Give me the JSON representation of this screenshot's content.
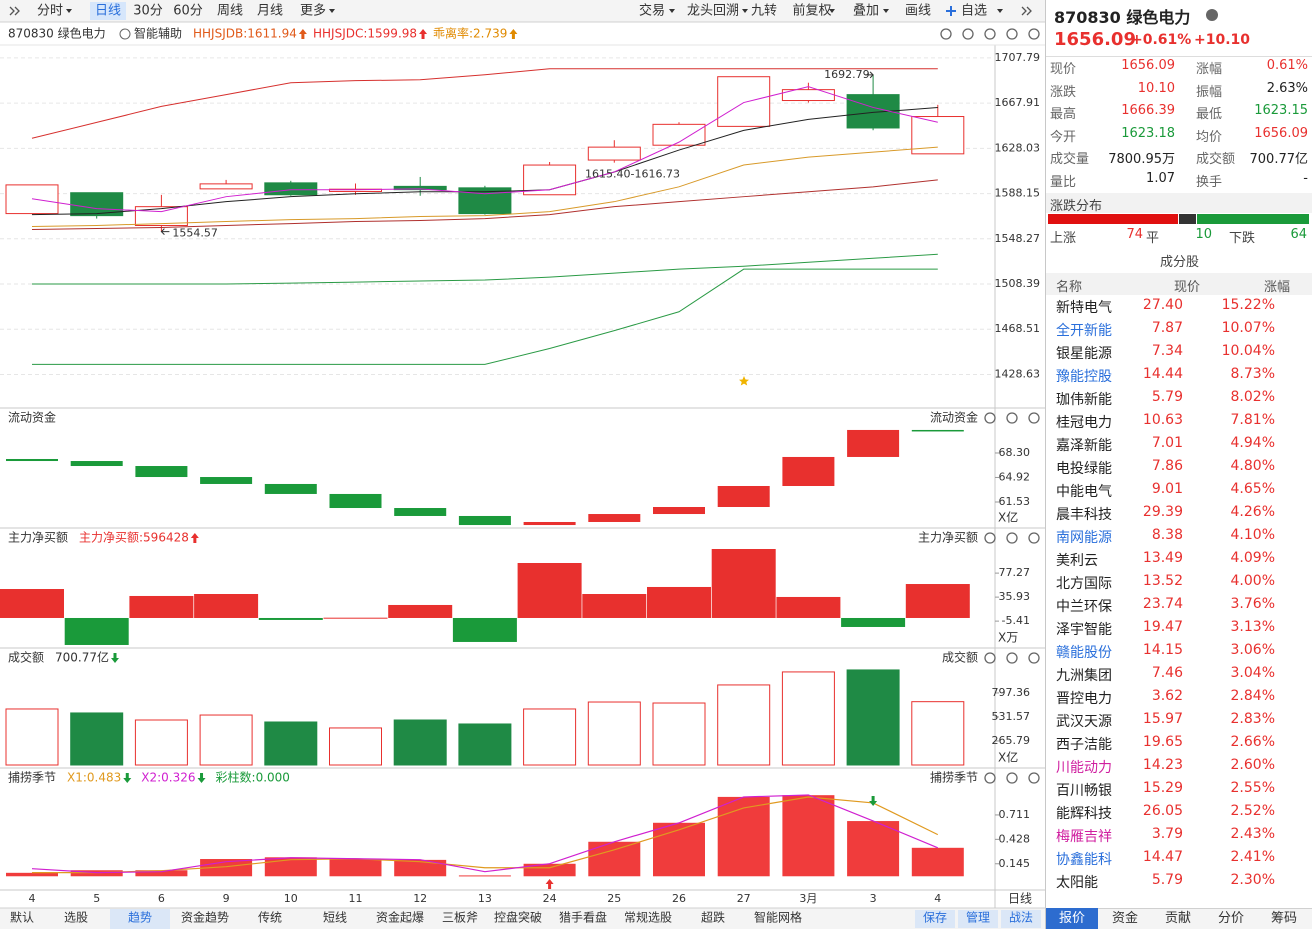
{
  "toolbar": {
    "left": [
      "分时",
      "日线",
      "30分",
      "60分",
      "周线",
      "月线",
      "更多"
    ],
    "active_index": 1,
    "right": [
      "交易",
      "龙头回溯",
      "九转",
      "前复权",
      "叠加",
      "画线",
      "自选"
    ]
  },
  "info_bar": {
    "code": "870830 绿色电力",
    "assist": "智能辅助",
    "items": [
      {
        "text": "HHJSJDB:1611.94",
        "color": "#e05a1a",
        "arrow": "up"
      },
      {
        "text": "HHJSJDC:1599.98",
        "color": "#e8302e",
        "arrow": "up"
      },
      {
        "text": "乖离率:2.739",
        "color": "#e08a00",
        "arrow": "up"
      }
    ]
  },
  "kline": {
    "categories": [
      "4",
      "5",
      "6",
      "9",
      "10",
      "11",
      "12",
      "13",
      "24",
      "25",
      "26",
      "27",
      "3月",
      "3",
      "4"
    ],
    "open": [
      1570.5,
      1588.9,
      1560.0,
      1592.3,
      1597.6,
      1590.0,
      1594.5,
      1593.2,
      1587.1,
      1617.7,
      1630.8,
      1647.4,
      1670.2,
      1675.4,
      1623.18
    ],
    "high": [
      1596.0,
      1589.0,
      1587.0,
      1600.2,
      1599.4,
      1597.0,
      1602.8,
      1595.0,
      1616.0,
      1635.2,
      1651.0,
      1691.2,
      1685.9,
      1692.79,
      1666.39
    ],
    "low": [
      1570.0,
      1566.1,
      1554.57,
      1592.3,
      1586.2,
      1587.0,
      1586.2,
      1569.6,
      1587.1,
      1615.4,
      1630.0,
      1647.4,
      1668.4,
      1644.0,
      1623.15
    ],
    "close": [
      1595.8,
      1568.7,
      1576.6,
      1596.7,
      1587.1,
      1592.0,
      1591.6,
      1570.5,
      1613.3,
      1629.1,
      1649.2,
      1691.2,
      1679.8,
      1645.99,
      1656.09
    ],
    "up_color": "#e8302e",
    "down_color": "#1f8a45",
    "ylim": [
      1399.06,
      1719.16
    ],
    "yticks": [
      1707.79,
      1667.91,
      1628.03,
      1588.15,
      1548.27,
      1508.39,
      1468.51,
      1428.63
    ],
    "lines": [
      {
        "color": "#d6302e",
        "values": [
          1636.9,
          1650.9,
          1665.0,
          1675.4,
          1685.9,
          1687.7,
          1688.5,
          1692.9,
          1698.2,
          1698.2,
          1698.2,
          1698.2,
          1698.2,
          1698.2,
          1698.2
        ]
      },
      {
        "color": "#2a9a45",
        "values": [
          1508.4,
          1508.4,
          1508.4,
          1508.4,
          1509.2,
          1510.1,
          1511.0,
          1511.9,
          1514.5,
          1518.0,
          1521.5,
          1524.1,
          1527.6,
          1531.1,
          1534.6
        ]
      },
      {
        "color": "#2a9a45",
        "values": [
          1437.5,
          1437.5,
          1437.5,
          1437.5,
          1437.5,
          1437.5,
          1437.5,
          1437.5,
          1451.5,
          1467.3,
          1483.9,
          1521.5,
          1521.5,
          1521.5,
          1521.5
        ]
      },
      {
        "color": "#b0302e",
        "values": [
          1556.5,
          1557.4,
          1558.2,
          1560.0,
          1561.7,
          1563.5,
          1564.4,
          1566.1,
          1569.6,
          1576.6,
          1581.0,
          1585.4,
          1589.7,
          1594.1,
          1600.2
        ]
      },
      {
        "color": "#d89a2a",
        "values": [
          1559.1,
          1560.0,
          1561.7,
          1563.5,
          1565.2,
          1566.1,
          1567.9,
          1568.7,
          1572.2,
          1581.0,
          1594.1,
          1613.3,
          1620.3,
          1624.7,
          1629.1
        ]
      },
      {
        "color": "#222222",
        "values": [
          1569.6,
          1570.5,
          1574.9,
          1581.0,
          1585.4,
          1588.0,
          1589.7,
          1589.7,
          1591.5,
          1607.2,
          1626.5,
          1643.9,
          1653.6,
          1659.7,
          1664.1
        ]
      },
      {
        "color": "#d020d0",
        "values": [
          1583.6,
          1574.9,
          1572.2,
          1585.4,
          1591.5,
          1591.5,
          1592.3,
          1588.0,
          1591.5,
          1607.2,
          1633.5,
          1668.4,
          1682.4,
          1664.1,
          1651.0
        ]
      }
    ],
    "gap_label": "1615.40-1616.73"
  },
  "flow": {
    "title": "流动资金",
    "unit": "X亿",
    "ylim": [
      57.94,
      71.75
    ],
    "yticks": [
      {
        "value": 68.3,
        "label": "68.30"
      },
      64.92,
      61.53
    ],
    "levels": [
      67.47,
      67.19,
      66.5,
      64.98,
      64.02,
      62.64,
      60.7,
      59.6,
      58.35,
      58.77,
      59.87,
      60.84,
      63.74,
      67.75,
      71.48,
      71.48
    ]
  },
  "mainforce": {
    "title": "主力净买额",
    "indicator": "主力净买额:596428",
    "unit": "X万",
    "ylim": [
      -51.7,
      125.7
    ],
    "yticks": [
      77.27,
      35.93,
      -5.41
    ],
    "values": [
      49.9,
      -46.5,
      37.9,
      41.3,
      -3.4,
      0.5,
      22.4,
      -41.3,
      94.7,
      41.3,
      53.4,
      118.8,
      36.2,
      -15.5,
      58.5
    ]
  },
  "turnover": {
    "title": "成交额",
    "indicator": "700.77亿",
    "unit": "X亿",
    "ylim": [
      0,
      1162
    ],
    "yticks": [
      797.36,
      531.57,
      265.79
    ],
    "values": [
      620,
      576,
      498,
      553,
      476,
      410,
      498,
      454,
      620,
      697,
      686,
      886,
      1030,
      1052,
      700.77
    ]
  },
  "season": {
    "title": "捕捞季节",
    "ylim": [
      -0.02,
      1.0
    ],
    "yticks": [
      0.711,
      0.428,
      0.145
    ],
    "indicators": [
      {
        "text": "X1:0.483",
        "color": "#e09a20",
        "arrow": "down"
      },
      {
        "text": "X2:0.326",
        "color": "#d020d0",
        "arrow": "down"
      },
      {
        "text": "彩柱数:0.000",
        "color": "#1a9a3a"
      }
    ],
    "values": [
      0.04,
      0.07,
      0.07,
      0.2,
      0.22,
      0.2,
      0.19,
      0.01,
      0.145,
      0.4,
      0.62,
      0.92,
      0.94,
      0.64,
      0.33
    ],
    "x1": [
      0.042,
      0.042,
      0.065,
      0.111,
      0.192,
      0.203,
      0.169,
      0.099,
      0.099,
      0.307,
      0.538,
      0.792,
      0.919,
      0.85,
      0.483
    ],
    "x2": [
      0.088,
      0.042,
      0.053,
      0.169,
      0.215,
      0.203,
      0.192,
      0.053,
      0.146,
      0.4,
      0.619,
      0.919,
      0.942,
      0.642,
      0.33
    ]
  },
  "x_axis_label": "日线",
  "bottom_tabs": [
    "默认",
    "选股",
    "趋势",
    "资金趋势",
    "传统",
    "短线",
    "资金起爆",
    "三板斧",
    "控盘突破",
    "猎手看盘",
    "常规选股",
    "超跌",
    "智能网格"
  ],
  "bottom_active_index": 2,
  "bottom_actions": [
    "保存",
    "管理",
    "战法"
  ],
  "quote": {
    "code": "870830 绿色电力",
    "price": "1656.09",
    "change_pct": "+0.61%",
    "change": "+10.10",
    "rows": [
      [
        {
          "label": "现价",
          "value": "1656.09",
          "color": "#e8302e"
        },
        {
          "label": "涨幅",
          "value": "0.61%",
          "color": "#e8302e"
        }
      ],
      [
        {
          "label": "涨跌",
          "value": "10.10",
          "color": "#e8302e"
        },
        {
          "label": "振幅",
          "value": "2.63%",
          "color": "#222222"
        }
      ],
      [
        {
          "label": "最高",
          "value": "1666.39",
          "color": "#e8302e"
        },
        {
          "label": "最低",
          "value": "1623.15",
          "color": "#1a9a3a"
        }
      ],
      [
        {
          "label": "今开",
          "value": "1623.18",
          "color": "#1a9a3a"
        },
        {
          "label": "均价",
          "value": "1656.09",
          "color": "#e8302e"
        }
      ],
      [
        {
          "label": "成交量",
          "value": "7800.95万",
          "color": "#222222"
        },
        {
          "label": "成交额",
          "value": "700.77亿",
          "color": "#222222"
        }
      ],
      [
        {
          "label": "量比",
          "value": "1.07",
          "color": "#222222"
        },
        {
          "label": "换手",
          "value": "-",
          "color": "#222222"
        }
      ]
    ]
  },
  "distribution": {
    "title": "涨跌分布",
    "up_label": "上涨",
    "up": 74,
    "flat_label": "平",
    "flat": 10,
    "down_label": "下跌",
    "down": 64
  },
  "components": {
    "title": "成分股",
    "columns": [
      "名称",
      "现价",
      "涨幅"
    ],
    "rows": [
      {
        "name": "新特电气",
        "price": "27.40",
        "change": "15.22%"
      },
      {
        "name": "全开新能",
        "price": "7.87",
        "change": "10.07%",
        "color": "#2a6fdb"
      },
      {
        "name": "银星能源",
        "price": "7.34",
        "change": "10.04%"
      },
      {
        "name": "豫能控股",
        "price": "14.44",
        "change": "8.73%",
        "color": "#2a6fdb"
      },
      {
        "name": "珈伟新能",
        "price": "5.79",
        "change": "8.02%"
      },
      {
        "name": "桂冠电力",
        "price": "10.63",
        "change": "7.81%"
      },
      {
        "name": "嘉泽新能",
        "price": "7.01",
        "change": "4.94%"
      },
      {
        "name": "电投绿能",
        "price": "7.86",
        "change": "4.80%"
      },
      {
        "name": "中能电气",
        "price": "9.01",
        "change": "4.65%"
      },
      {
        "name": "晨丰科技",
        "price": "29.39",
        "change": "4.26%"
      },
      {
        "name": "南网能源",
        "price": "8.38",
        "change": "4.10%",
        "color": "#2a6fdb"
      },
      {
        "name": "美利云",
        "price": "13.49",
        "change": "4.09%"
      },
      {
        "name": "北方国际",
        "price": "13.52",
        "change": "4.00%"
      },
      {
        "name": "中兰环保",
        "price": "23.74",
        "change": "3.76%"
      },
      {
        "name": "泽宇智能",
        "price": "19.47",
        "change": "3.13%"
      },
      {
        "name": "赣能股份",
        "price": "14.15",
        "change": "3.06%",
        "color": "#2a6fdb"
      },
      {
        "name": "九洲集团",
        "price": "7.46",
        "change": "3.04%"
      },
      {
        "name": "晋控电力",
        "price": "3.62",
        "change": "2.84%"
      },
      {
        "name": "武汉天源",
        "price": "15.97",
        "change": "2.83%"
      },
      {
        "name": "西子洁能",
        "price": "19.65",
        "change": "2.66%"
      },
      {
        "name": "川能动力",
        "price": "14.23",
        "change": "2.60%",
        "color": "#d020a0"
      },
      {
        "name": "百川畅银",
        "price": "15.29",
        "change": "2.55%"
      },
      {
        "name": "能辉科技",
        "price": "26.05",
        "change": "2.52%"
      },
      {
        "name": "梅雁吉祥",
        "price": "3.79",
        "change": "2.43%",
        "color": "#d020a0"
      },
      {
        "name": "协鑫能科",
        "price": "14.47",
        "change": "2.41%",
        "color": "#2a6fdb"
      },
      {
        "name": "太阳能",
        "price": "5.79",
        "change": "2.30%"
      }
    ]
  },
  "panel_tabs": [
    "报价",
    "资金",
    "贡献",
    "分价",
    "筹码"
  ],
  "panel_active_index": 0
}
